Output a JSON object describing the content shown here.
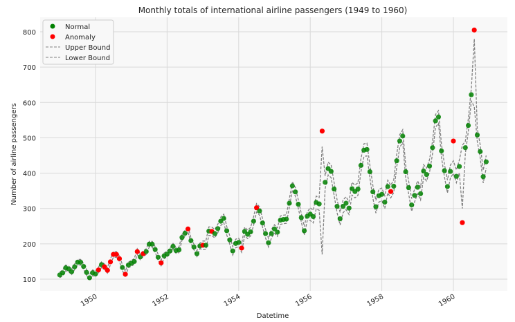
{
  "chart_data": {
    "type": "line",
    "title": "Monthly totals of international airline passengers (1949 to 1960)",
    "xlabel": "Datetime",
    "ylabel": "Number of airline passengers",
    "xlim": [
      "1948-09",
      "1961-06"
    ],
    "ylim": [
      68,
      840
    ],
    "x_ticks": [
      "1950",
      "1952",
      "1954",
      "1956",
      "1958",
      "1960"
    ],
    "y_ticks": [
      100,
      200,
      300,
      400,
      500,
      600,
      700,
      800
    ],
    "grid": true,
    "legend_placement": "top-left",
    "legend": [
      "Normal",
      "Anomaly",
      "Upper Bound",
      "Lower Bound"
    ],
    "colors": {
      "normal": "#008000",
      "anomaly": "#ff0000",
      "bounds": "#808080",
      "plot_bg": "#f8f8f8",
      "grid": "#d9d9d9"
    },
    "values_by_year": {
      "1949": [
        112,
        118,
        132,
        129,
        121,
        135,
        148,
        148,
        136,
        119,
        104,
        118
      ],
      "1950": [
        115,
        126,
        141,
        135,
        125,
        149,
        170,
        170,
        158,
        133,
        114,
        140
      ],
      "1951": [
        145,
        150,
        178,
        163,
        172,
        178,
        199,
        199,
        184,
        162,
        146,
        166
      ],
      "1952": [
        171,
        180,
        193,
        181,
        183,
        218,
        230,
        242,
        209,
        191,
        172,
        194
      ],
      "1953": [
        196,
        196,
        236,
        235,
        229,
        243,
        264,
        272,
        237,
        211,
        180,
        201
      ],
      "1954": [
        204,
        188,
        235,
        227,
        234,
        264,
        302,
        293,
        259,
        229,
        203,
        229
      ],
      "1955": [
        242,
        233,
        267,
        269,
        270,
        315,
        364,
        347,
        312,
        274,
        237,
        278
      ],
      "1956": [
        284,
        277,
        317,
        313,
        519,
        374,
        413,
        405,
        355,
        306,
        271,
        306
      ],
      "1957": [
        315,
        301,
        356,
        348,
        355,
        422,
        465,
        467,
        404,
        347,
        305,
        336
      ],
      "1958": [
        340,
        318,
        362,
        348,
        363,
        435,
        491,
        505,
        404,
        359,
        310,
        337
      ],
      "1959": [
        360,
        342,
        406,
        396,
        420,
        472,
        548,
        559,
        463,
        407,
        362,
        405
      ],
      "1960": [
        491,
        391,
        419,
        260,
        472,
        535,
        622,
        805,
        508,
        461,
        390,
        432
      ]
    },
    "anomalies": [
      "1950-02",
      "1950-04",
      "1950-05",
      "1950-06",
      "1950-07",
      "1950-08",
      "1950-09",
      "1950-11",
      "1951-03",
      "1951-05",
      "1951-11",
      "1952-08",
      "1953-01",
      "1953-04",
      "1954-02",
      "1954-07",
      "1956-05",
      "1958-04",
      "1960-01",
      "1960-04",
      "1960-08"
    ],
    "upper_by_year": {
      "1949": [
        120,
        126,
        140,
        137,
        129,
        143,
        156,
        156,
        144,
        127,
        112,
        126
      ],
      "1950": [
        123,
        134,
        149,
        143,
        133,
        157,
        178,
        178,
        166,
        141,
        122,
        148
      ],
      "1951": [
        153,
        158,
        186,
        171,
        180,
        186,
        207,
        207,
        192,
        170,
        154,
        174
      ],
      "1952": [
        179,
        188,
        201,
        189,
        191,
        226,
        238,
        250,
        217,
        199,
        180,
        202
      ],
      "1953": [
        208,
        208,
        248,
        247,
        241,
        255,
        276,
        284,
        249,
        223,
        192,
        213
      ],
      "1954": [
        216,
        200,
        247,
        239,
        246,
        276,
        314,
        305,
        271,
        241,
        215,
        241
      ],
      "1955": [
        254,
        245,
        279,
        281,
        282,
        327,
        376,
        359,
        324,
        286,
        249,
        290
      ],
      "1956": [
        302,
        295,
        335,
        331,
        475,
        392,
        431,
        423,
        373,
        324,
        289,
        324
      ],
      "1957": [
        333,
        319,
        374,
        366,
        373,
        440,
        483,
        485,
        422,
        365,
        323,
        354
      ],
      "1958": [
        358,
        336,
        380,
        366,
        381,
        453,
        509,
        523,
        422,
        377,
        328,
        355
      ],
      "1959": [
        378,
        360,
        424,
        414,
        438,
        490,
        566,
        577,
        481,
        425,
        380,
        423
      ],
      "1960": [
        435,
        409,
        437,
        479,
        490,
        553,
        640,
        780,
        526,
        479,
        408,
        450
      ]
    },
    "lower_by_year": {
      "1949": [
        104,
        110,
        124,
        121,
        113,
        127,
        140,
        140,
        128,
        111,
        96,
        110
      ],
      "1950": [
        107,
        118,
        133,
        127,
        117,
        141,
        162,
        162,
        150,
        125,
        106,
        132
      ],
      "1951": [
        137,
        142,
        170,
        155,
        164,
        170,
        191,
        191,
        176,
        154,
        138,
        158
      ],
      "1952": [
        163,
        172,
        185,
        173,
        175,
        210,
        222,
        234,
        201,
        183,
        164,
        186
      ],
      "1953": [
        184,
        184,
        224,
        223,
        217,
        231,
        252,
        260,
        225,
        199,
        168,
        189
      ],
      "1954": [
        192,
        176,
        223,
        215,
        222,
        252,
        290,
        281,
        247,
        217,
        191,
        217
      ],
      "1955": [
        230,
        221,
        255,
        257,
        258,
        303,
        352,
        335,
        300,
        262,
        225,
        266
      ],
      "1956": [
        266,
        259,
        299,
        295,
        170,
        356,
        395,
        387,
        337,
        288,
        253,
        288
      ],
      "1957": [
        297,
        283,
        338,
        330,
        337,
        404,
        447,
        449,
        386,
        329,
        287,
        318
      ],
      "1958": [
        322,
        300,
        344,
        330,
        345,
        417,
        473,
        487,
        386,
        341,
        292,
        319
      ],
      "1959": [
        342,
        324,
        388,
        378,
        402,
        454,
        530,
        541,
        445,
        389,
        344,
        387
      ],
      "1960": [
        399,
        373,
        401,
        300,
        454,
        517,
        604,
        588,
        490,
        443,
        372,
        414
      ]
    }
  }
}
